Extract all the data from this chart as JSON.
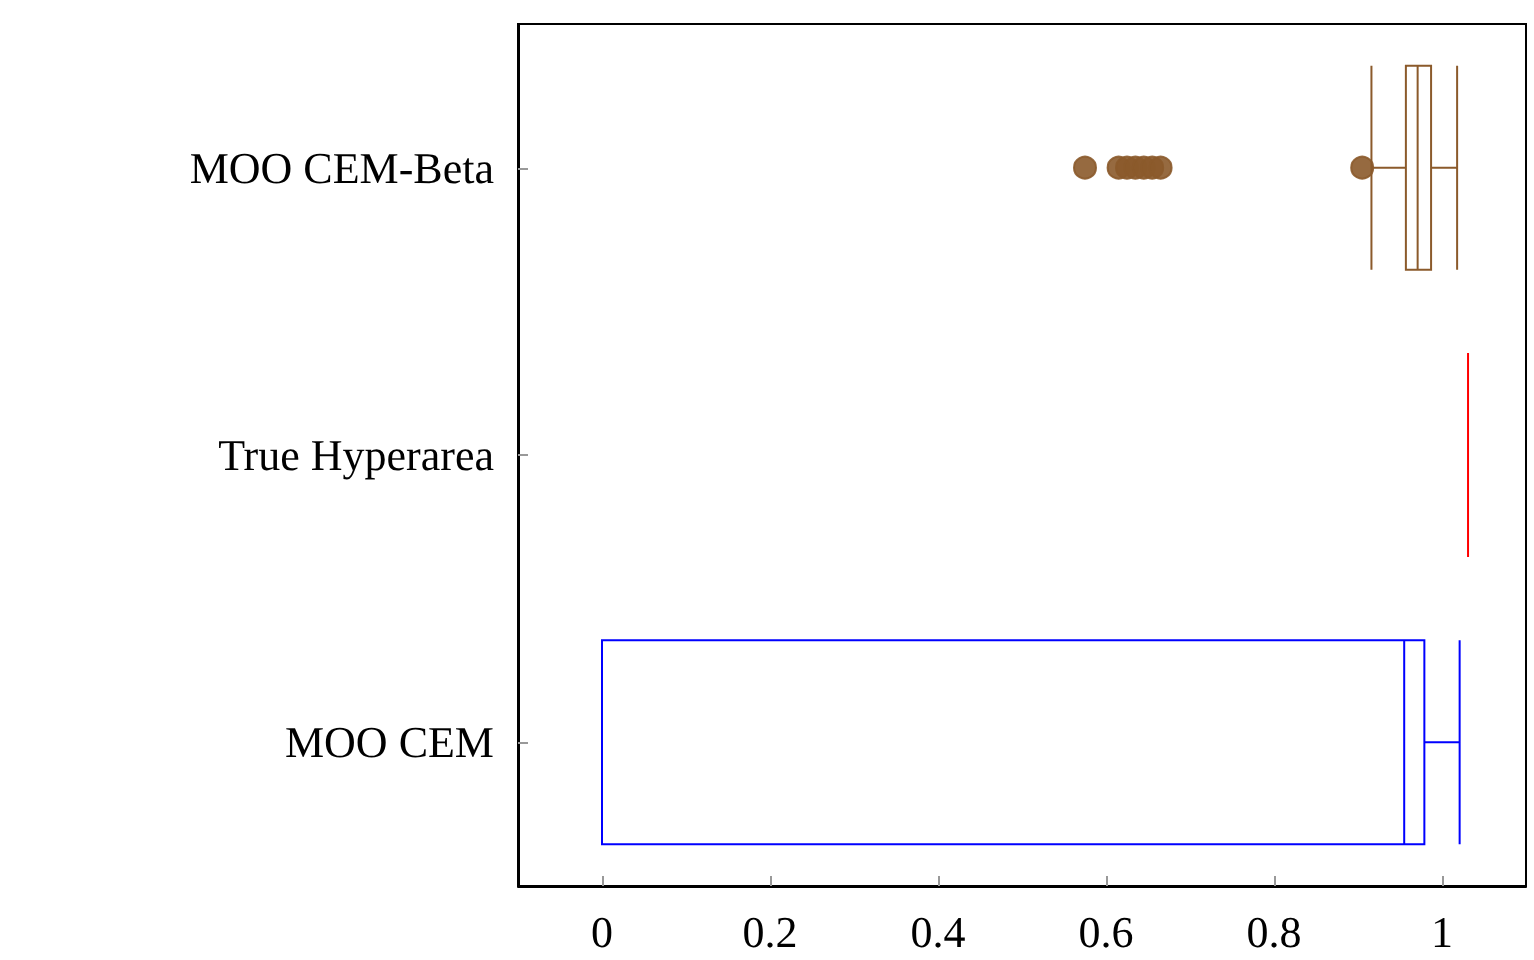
{
  "chart_data": {
    "type": "box",
    "orientation": "horizontal",
    "categories": [
      "MOO CEM-Beta",
      "True Hyperarea",
      "MOO CEM"
    ],
    "boxes": [
      {
        "low": 0.916,
        "q1": 0.957,
        "median": 0.971,
        "q3": 0.987,
        "high": 1.018,
        "outliers": [
          0.575,
          0.615,
          0.625,
          0.635,
          0.645,
          0.655,
          0.665,
          0.905
        ]
      },
      {
        "low": 1.031,
        "q1": 1.031,
        "median": 1.031,
        "q3": 1.031,
        "high": 1.031
      },
      {
        "low": 0,
        "q1": 0,
        "median": 0.955,
        "q3": 0.979,
        "high": 1.021
      }
    ],
    "colors": [
      "#8b5a2b",
      "#ff0000",
      "#0000ff"
    ],
    "marker": "circle",
    "xlim": [
      -0.1,
      1.1
    ],
    "xticks": [
      0,
      0.2,
      0.4,
      0.6,
      0.8,
      1
    ],
    "grid": false
  }
}
